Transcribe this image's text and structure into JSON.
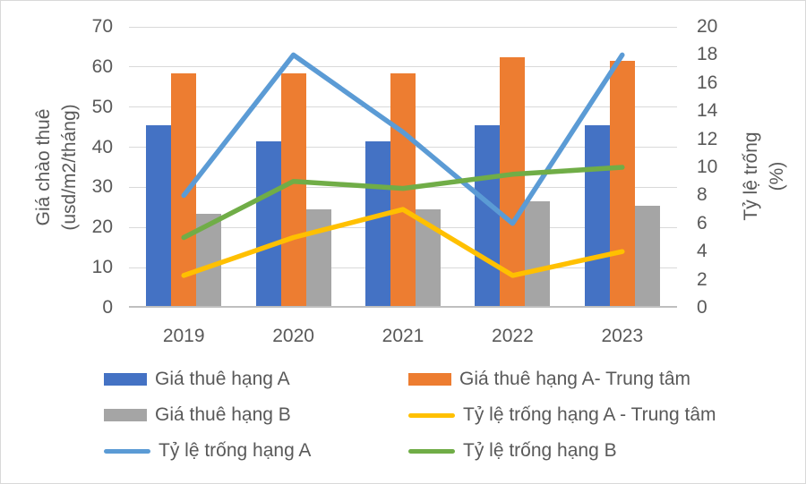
{
  "chart_data": {
    "type": "combo-bar-line",
    "categories": [
      "2019",
      "2020",
      "2021",
      "2022",
      "2023"
    ],
    "bar_series": [
      {
        "id": "gia-thue-hang-a",
        "name": "Giá thuê hạng A",
        "color": "#4472C4",
        "axis": "left",
        "values": [
          45,
          41,
          41,
          45,
          45
        ]
      },
      {
        "id": "gia-thue-hang-a-trung-tam",
        "name": "Giá thuê hạng A- Trung tâm",
        "color": "#ED7D31",
        "axis": "left",
        "values": [
          58,
          58,
          58,
          62,
          61
        ]
      },
      {
        "id": "gia-thue-hang-b",
        "name": "Giá thuê hạng B",
        "color": "#A5A5A5",
        "axis": "left",
        "values": [
          23,
          24,
          24,
          26,
          25
        ]
      }
    ],
    "line_series": [
      {
        "id": "ty-le-trong-hang-a",
        "name": "Tỷ lệ trống hạng A",
        "color": "#5B9BD5",
        "axis": "right",
        "values": [
          8,
          18,
          12.5,
          6,
          18
        ]
      },
      {
        "id": "ty-le-trong-hang-a-trung-tam",
        "name": "Tỷ lệ trống hạng A - Trung tâm",
        "color": "#FFC000",
        "axis": "right",
        "values": [
          2.3,
          5,
          7,
          2.3,
          4
        ]
      },
      {
        "id": "ty-le-trong-hang-b",
        "name": "Tỷ lệ trống hạng B",
        "color": "#70AD47",
        "axis": "right",
        "values": [
          5,
          9,
          8.5,
          9.5,
          10
        ]
      }
    ],
    "left_axis": {
      "title_line1": "Giá chào thuê",
      "title_line2": "(usd/m2/tháng)",
      "min": 0,
      "max": 70,
      "tick_step": 10,
      "ticks": [
        0,
        10,
        20,
        30,
        40,
        50,
        60,
        70
      ]
    },
    "right_axis": {
      "title_line1": "Tỷ lệ trống",
      "title_line2": "(%)",
      "min": 0,
      "max": 20,
      "tick_step": 2,
      "ticks": [
        0,
        2,
        4,
        6,
        8,
        10,
        12,
        14,
        16,
        18,
        20
      ]
    },
    "legend": [
      {
        "label": "Giá thuê hạng A",
        "swatch": "bar",
        "color": "#4472C4"
      },
      {
        "label": "Giá thuê hạng A- Trung tâm",
        "swatch": "bar",
        "color": "#ED7D31"
      },
      {
        "label": "Giá thuê hạng B",
        "swatch": "bar",
        "color": "#A5A5A5"
      },
      {
        "label": "Tỷ lệ trống hạng A - Trung tâm",
        "swatch": "line",
        "color": "#FFC000"
      },
      {
        "label": "Tỷ lệ trống hạng A",
        "swatch": "line",
        "color": "#5B9BD5"
      },
      {
        "label": "Tỷ lệ trống hạng B",
        "swatch": "line",
        "color": "#70AD47"
      }
    ],
    "grid_on": true,
    "grid_color": "#D9D9D9",
    "axis_line_color": "#BFBFBF",
    "text_color": "#595959",
    "legend_position": "bottom"
  }
}
